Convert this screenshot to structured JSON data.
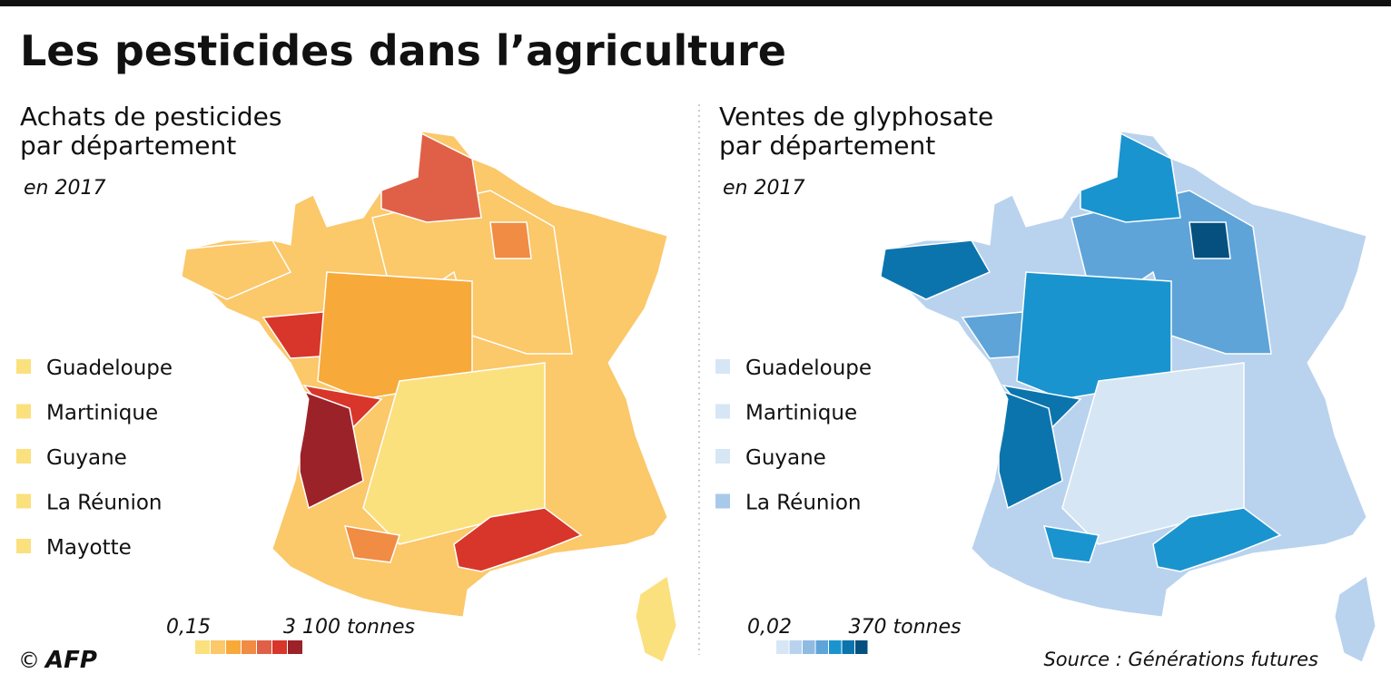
{
  "title": "Les pesticides dans l’agriculture",
  "panels": [
    {
      "subtitle_lines": [
        "Achats de pesticides",
        "par département"
      ],
      "year": "en 2017",
      "overseas": [
        {
          "name": "Guadeloupe",
          "color": "#fbe07e"
        },
        {
          "name": "Martinique",
          "color": "#fbe07e"
        },
        {
          "name": "Guyane",
          "color": "#fbe07e"
        },
        {
          "name": "La Réunion",
          "color": "#fbe07e"
        },
        {
          "name": "Mayotte",
          "color": "#fbe07e"
        }
      ],
      "scale": {
        "min_label": "0,15",
        "max_label": "3 100 tonnes",
        "colors": [
          "#fbe07e",
          "#fbc86a",
          "#f7a93a",
          "#f08c44",
          "#e06047",
          "#d8362a",
          "#9c2229"
        ]
      }
    },
    {
      "subtitle_lines": [
        "Ventes de glyphosate",
        "par département"
      ],
      "year": "en 2017",
      "overseas": [
        {
          "name": "Guadeloupe",
          "color": "#d6e6f5"
        },
        {
          "name": "Martinique",
          "color": "#d6e6f5"
        },
        {
          "name": "Guyane",
          "color": "#d6e6f5"
        },
        {
          "name": "La Réunion",
          "color": "#a9c9ea"
        }
      ],
      "scale": {
        "min_label": "0,02",
        "max_label": "370 tonnes",
        "colors": [
          "#d6e6f5",
          "#b9d3ee",
          "#8fbbe3",
          "#5ea4d8",
          "#1a94cf",
          "#0c74ad",
          "#06507f"
        ]
      }
    }
  ],
  "copyright": "©",
  "logo": "AFP",
  "source": "Source : Générations futures"
}
